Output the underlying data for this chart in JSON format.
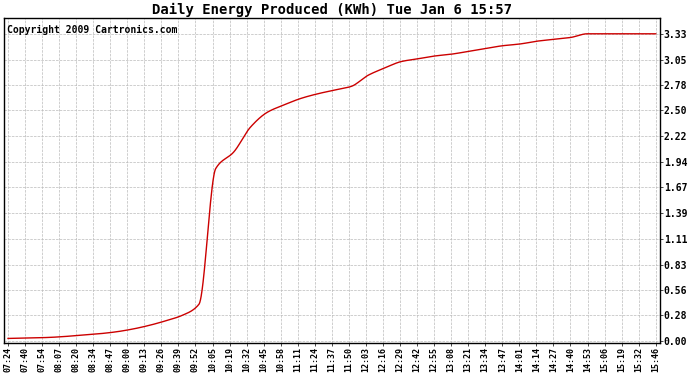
{
  "title": "Daily Energy Produced (KWh) Tue Jan 6 15:57",
  "copyright": "Copyright 2009 Cartronics.com",
  "line_color": "#cc0000",
  "bg_color": "#ffffff",
  "grid_color": "#bbbbbb",
  "yticks": [
    0.0,
    0.28,
    0.56,
    0.83,
    1.11,
    1.39,
    1.67,
    1.94,
    2.22,
    2.5,
    2.78,
    3.05,
    3.33
  ],
  "xtick_labels": [
    "07:24",
    "07:40",
    "07:54",
    "08:07",
    "08:20",
    "08:34",
    "08:47",
    "09:00",
    "09:13",
    "09:26",
    "09:39",
    "09:52",
    "10:05",
    "10:19",
    "10:32",
    "10:45",
    "10:58",
    "11:11",
    "11:24",
    "11:37",
    "11:50",
    "12:03",
    "12:16",
    "12:29",
    "12:42",
    "12:55",
    "13:08",
    "13:21",
    "13:34",
    "13:47",
    "14:01",
    "14:14",
    "14:27",
    "14:40",
    "14:53",
    "15:06",
    "15:19",
    "15:32",
    "15:46"
  ],
  "x_values": [
    0,
    16,
    30,
    43,
    56,
    70,
    83,
    96,
    109,
    122,
    135,
    148,
    161,
    175,
    188,
    201,
    214,
    227,
    240,
    253,
    266,
    279,
    292,
    305,
    318,
    331,
    344,
    357,
    370,
    383,
    397,
    410,
    423,
    436,
    449,
    462,
    475,
    488,
    502
  ],
  "y_values": [
    0.03,
    0.035,
    0.04,
    0.05,
    0.065,
    0.08,
    0.1,
    0.13,
    0.17,
    0.22,
    0.28,
    0.4,
    1.87,
    2.05,
    2.32,
    2.48,
    2.56,
    2.63,
    2.68,
    2.72,
    2.76,
    2.88,
    2.96,
    3.03,
    3.06,
    3.09,
    3.11,
    3.14,
    3.17,
    3.2,
    3.22,
    3.25,
    3.27,
    3.29,
    3.33,
    3.33,
    3.33,
    3.33,
    3.33
  ],
  "ylim": [
    -0.02,
    3.5
  ],
  "title_fontsize": 10,
  "tick_fontsize": 7,
  "copyright_fontsize": 7
}
